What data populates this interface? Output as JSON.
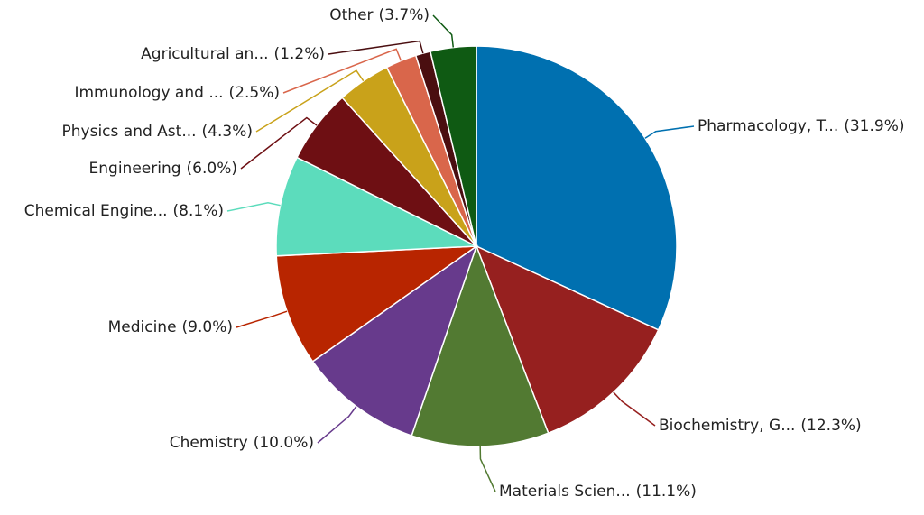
{
  "chart_data": {
    "type": "pie",
    "categories": [
      "Pharmacology, T...",
      "Biochemistry, G...",
      "Materials Scien...",
      "Chemistry",
      "Medicine",
      "Chemical Engine...",
      "Engineering",
      "Physics and Ast...",
      "Immunology and ...",
      "Agricultural an...",
      "Other"
    ],
    "values": [
      31.9,
      12.3,
      11.1,
      10.0,
      9.0,
      8.1,
      6.0,
      4.3,
      2.5,
      1.2,
      3.7
    ],
    "value_labels": [
      "(31.9%)",
      "(12.3%)",
      "(11.1%)",
      "(10.0%)",
      "(9.0%)",
      "(8.1%)",
      "(6.0%)",
      "(4.3%)",
      "(2.5%)",
      "(1.2%)",
      "(3.7%)"
    ],
    "colors": [
      "#0070b0",
      "#96201f",
      "#527a32",
      "#673a8c",
      "#b82500",
      "#5cdcbc",
      "#6e0f13",
      "#c9a21a",
      "#d9664b",
      "#4a0e10",
      "#0f5a13"
    ]
  }
}
